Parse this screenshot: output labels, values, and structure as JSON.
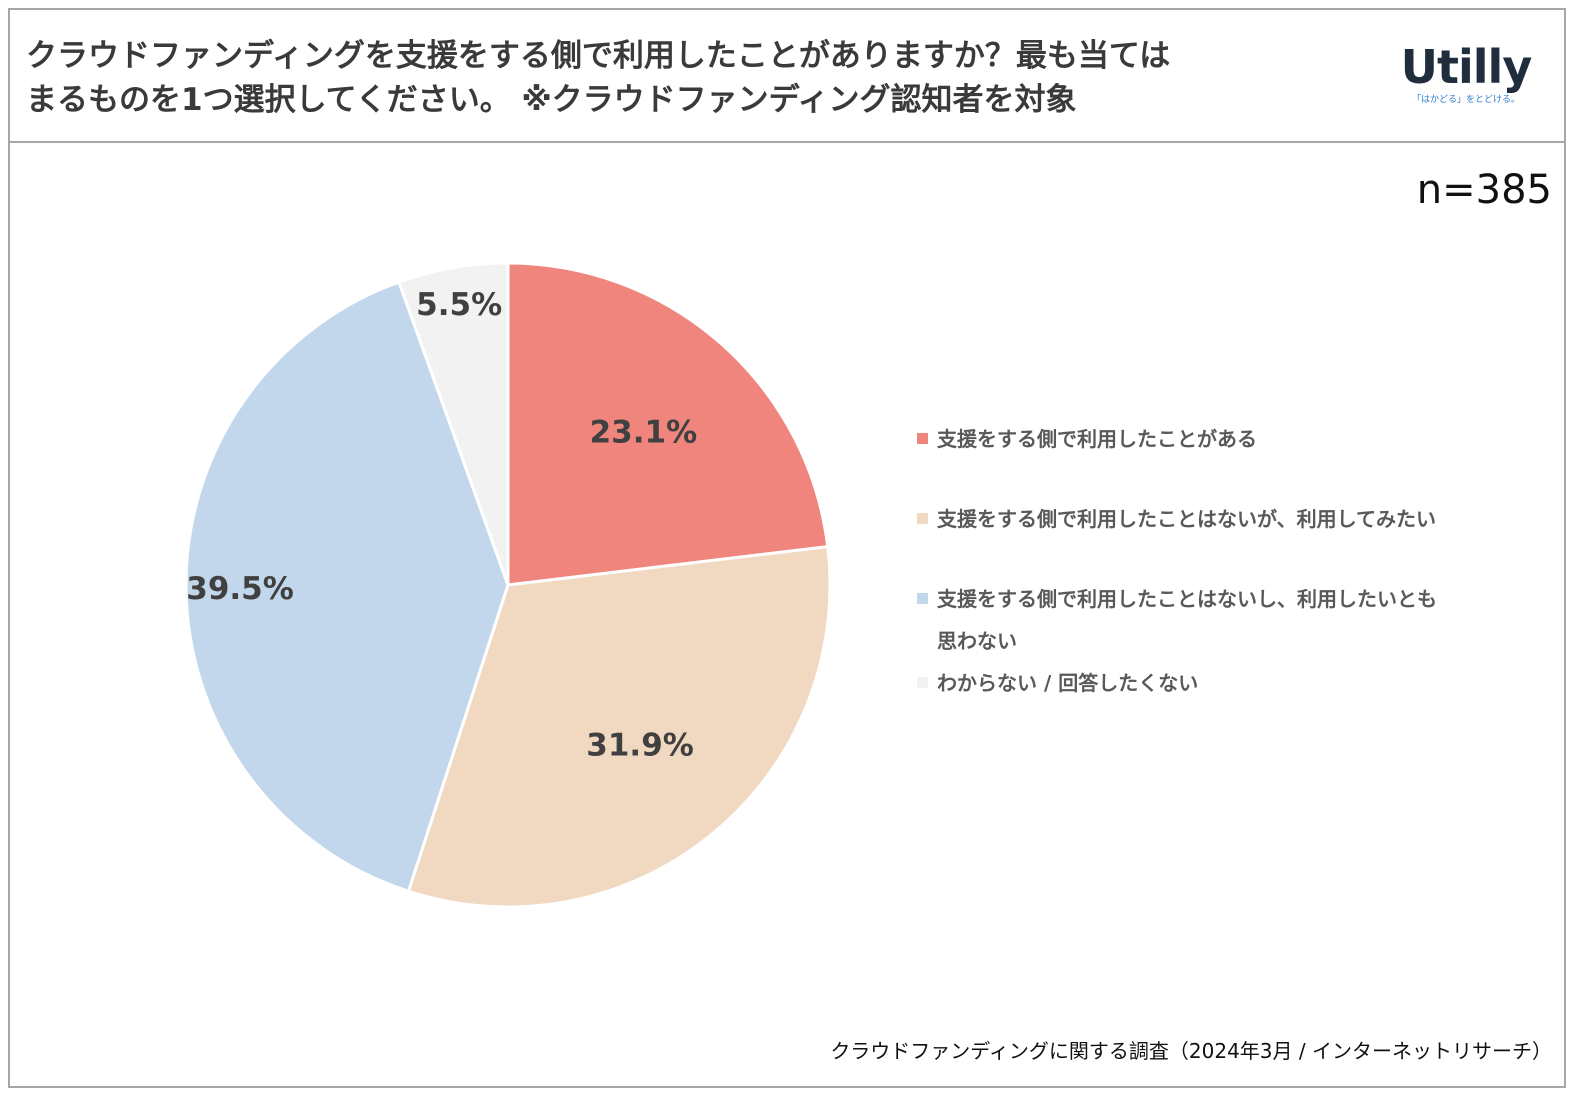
{
  "title_lines": [
    "クラウドファンディングを支援をする側で利用したことがありますか？最も当ては",
    "まるものを1つ選択してください。 ※クラウドファンディング認知者を対象"
  ],
  "logo": {
    "name": "Utilly",
    "tagline": "「はかどる」をとどける。"
  },
  "sample_size": "n=385",
  "source": "クラウドファンディングに関する調査（2024年3月 / インターネットリサーチ）",
  "chart_data": {
    "type": "pie",
    "title": "クラウドファンディングを支援をする側で利用したことがありますか？最も当てはまるものを1つ選択してください。 ※クラウドファンディング認知者を対象",
    "categories": [
      "支援をする側で利用したことがある",
      "支援をする側で利用したことはないが、利用してみたい",
      "支援をする側で利用したことはないし、利用したいとも思わない",
      "わからない / 回答したくない"
    ],
    "values": [
      23.1,
      31.9,
      39.5,
      5.5
    ],
    "value_labels": [
      "23.1%",
      "31.9%",
      "39.5%",
      "5.5%"
    ],
    "colors": [
      "#ef857d",
      "#f0d9c0",
      "#c3d7ec",
      "#f2f2f2"
    ],
    "start_angle": "12 o'clock",
    "direction": "clockwise",
    "legend_position": "right"
  },
  "legend": [
    {
      "lines": [
        "支援をする側で利用したことがある"
      ]
    },
    {
      "lines": [
        "支援をする側で利用したことはないが、利用してみたい"
      ]
    },
    {
      "lines": [
        "支援をする側で利用したことはないし、利用したいとも",
        "思わない"
      ]
    },
    {
      "lines": [
        "わからない / 回答したくない"
      ]
    }
  ]
}
